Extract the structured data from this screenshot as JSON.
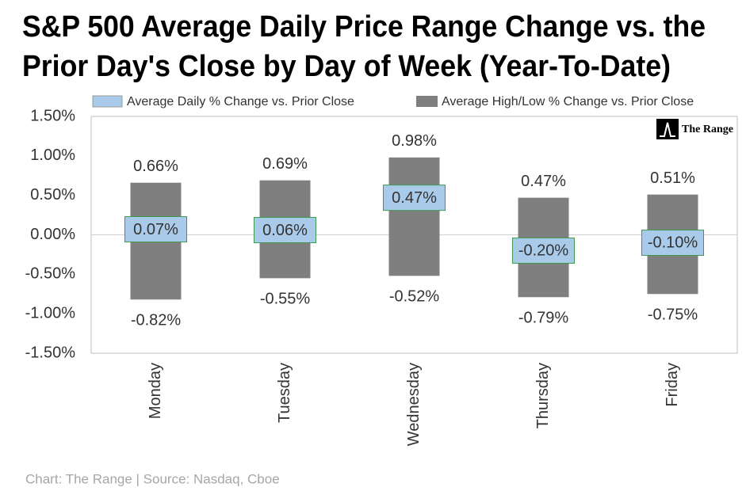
{
  "chart_data": {
    "type": "range",
    "title": [
      "S&P 500 Average Daily Price Range Change vs. the",
      "Prior Day's Close by Day of Week (Year-To-Date)"
    ],
    "logo_text": "The Range",
    "source": "Chart: The Range | Source: Nasdaq, Cboe",
    "categories": [
      "Monday",
      "Tuesday",
      "Wednesday",
      "Thursday",
      "Friday"
    ],
    "series": [
      {
        "name": "Average Daily % Change vs. Prior Close",
        "color": "#a9cbe9",
        "border": "#3e9a4e",
        "values": [
          0.07,
          0.06,
          0.47,
          -0.2,
          -0.1
        ],
        "value_labels": [
          "0.07%",
          "0.06%",
          "0.47%",
          "-0.20%",
          "-0.10%"
        ]
      },
      {
        "name": "Average High/Low % Change vs. Prior Close",
        "color": "#7f7f7f",
        "high": [
          0.66,
          0.69,
          0.98,
          0.47,
          0.51
        ],
        "high_labels": [
          "0.66%",
          "0.69%",
          "0.98%",
          "0.47%",
          "0.51%"
        ],
        "low": [
          -0.82,
          -0.55,
          -0.52,
          -0.79,
          -0.75
        ],
        "low_labels": [
          "-0.82%",
          "-0.55%",
          "-0.52%",
          "-0.79%",
          "-0.75%"
        ]
      }
    ],
    "ylim": [
      -1.5,
      1.5
    ],
    "yticks": [
      {
        "value": -1.5,
        "label": "-1.50%"
      },
      {
        "value": -1.0,
        "label": "-1.00%"
      },
      {
        "value": -0.5,
        "label": "-0.50%"
      },
      {
        "value": 0,
        "label": "0.00%"
      },
      {
        "value": 0.5,
        "label": "0.50%"
      },
      {
        "value": 1.0,
        "label": "1.00%"
      },
      {
        "value": 1.5,
        "label": "1.50%"
      }
    ],
    "grid": false
  }
}
